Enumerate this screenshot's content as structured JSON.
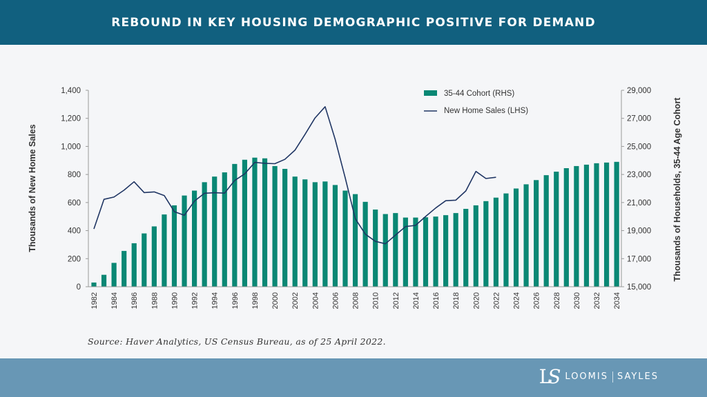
{
  "header": {
    "title": "REBOUND IN KEY HOUSING DEMOGRAPHIC POSITIVE FOR DEMAND"
  },
  "source": "Source: Haver Analytics, US Census Bureau, as of 25 April 2022.",
  "logo": {
    "left": "LOOMIS",
    "right": "SAYLES",
    "mark": "LS"
  },
  "colors": {
    "header": "#11607f",
    "footer": "#6897b5",
    "bars": "#0a8774",
    "line": "#1f3563"
  },
  "chart_data": {
    "type": "bar+line",
    "ylabel_left": "Thousands of New Home Sales",
    "ylabel_right": "Thousands of Households, 35-44 Age Cohort",
    "ylim_left": [
      0,
      1400
    ],
    "ylim_right": [
      15000,
      29000
    ],
    "yticks_left": [
      "0",
      "200",
      "400",
      "600",
      "800",
      "1,000",
      "1,200",
      "1,400"
    ],
    "yticks_right": [
      "15,000",
      "17,000",
      "19,000",
      "21,000",
      "23,000",
      "25,000",
      "27,000",
      "29,000"
    ],
    "xticks": [
      "1982",
      "1984",
      "1986",
      "1988",
      "1990",
      "1992",
      "1994",
      "1996",
      "1998",
      "2000",
      "2002",
      "2004",
      "2006",
      "2008",
      "2010",
      "2012",
      "2014",
      "2016",
      "2018",
      "2020",
      "2022",
      "2024",
      "2026",
      "2028",
      "2030",
      "2032",
      "2034"
    ],
    "legend_position": "top-center",
    "grid": false,
    "series": [
      {
        "name": "35-44 Cohort (RHS)",
        "type": "bar",
        "axis": "right",
        "start_year": 1982,
        "values": [
          15300,
          15850,
          16700,
          17550,
          18100,
          18800,
          19300,
          20150,
          20800,
          21500,
          21850,
          22450,
          22850,
          23150,
          23750,
          24050,
          24200,
          24150,
          23600,
          23400,
          22850,
          22650,
          22450,
          22500,
          22250,
          21850,
          21600,
          21050,
          20500,
          20180,
          20250,
          19930,
          19930,
          19950,
          20000,
          20100,
          20250,
          20550,
          20800,
          21100,
          21350,
          21650,
          22000,
          22300,
          22600,
          22950,
          23200,
          23450,
          23600,
          23700,
          23800,
          23850,
          23900
        ]
      },
      {
        "name": "New Home Sales (LHS)",
        "type": "line",
        "axis": "left",
        "start_year": 1982,
        "values": [
          412,
          623,
          639,
          688,
          748,
          671,
          676,
          650,
          535,
          509,
          610,
          666,
          670,
          667,
          757,
          804,
          886,
          880,
          877,
          908,
          973,
          1086,
          1203,
          1283,
          1051,
          776,
          485,
          375,
          323,
          306,
          368,
          429,
          437,
          501,
          561,
          613,
          617,
          683,
          822,
          771,
          780
        ]
      }
    ]
  }
}
